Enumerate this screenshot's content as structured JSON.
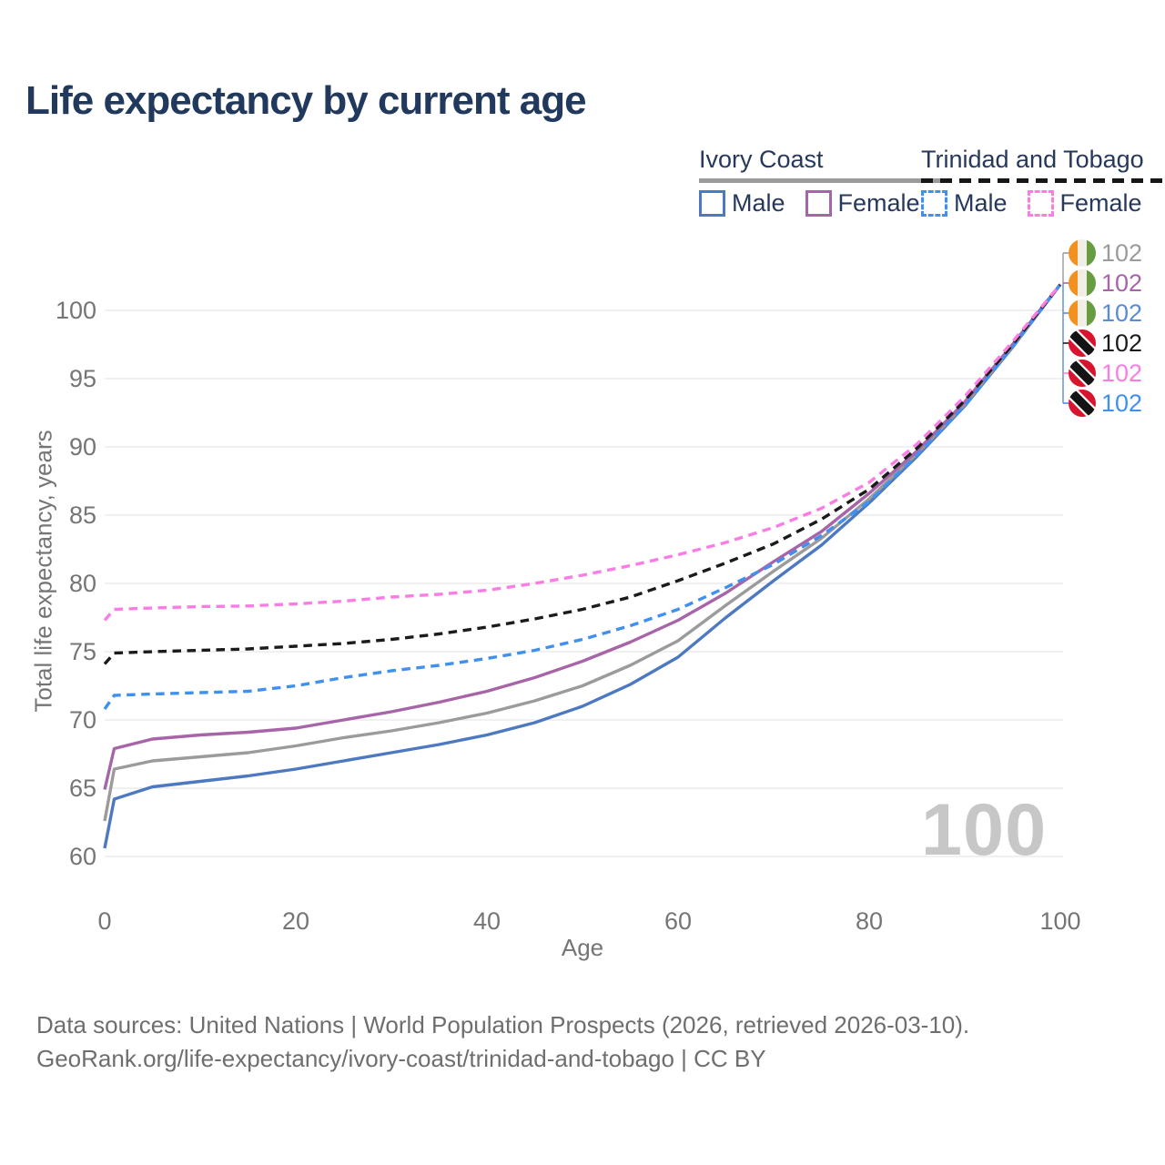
{
  "title": "Life expectancy by current age",
  "legend": {
    "groups": [
      {
        "id": "ivory-coast",
        "title": "Ivory Coast",
        "underline_style": "solid",
        "underline_color": "#9b9b9b",
        "items": [
          {
            "label": "Male",
            "color": "#4d79c0",
            "style": "solid"
          },
          {
            "label": "Female",
            "color": "#a765a8",
            "style": "solid"
          }
        ]
      },
      {
        "id": "trinidad-and-tobago",
        "title": "Trinidad and Tobago",
        "underline_style": "dashed",
        "underline_color": "#161616",
        "items": [
          {
            "label": "Male",
            "color": "#4090f0",
            "style": "dashed"
          },
          {
            "label": "Female",
            "color": "#fb7de4",
            "style": "dashed"
          }
        ]
      }
    ]
  },
  "chart_data": {
    "type": "line",
    "title": "Life expectancy by current age",
    "xlabel": "Age",
    "ylabel": "Total life expectancy, years",
    "xlim": [
      0,
      100
    ],
    "ylim": [
      60,
      102
    ],
    "x_ticks": [
      0,
      20,
      40,
      60,
      80,
      100
    ],
    "y_ticks": [
      60,
      65,
      70,
      75,
      80,
      85,
      90,
      95,
      100
    ],
    "grid": "horizontal",
    "legend_position": "top-right",
    "x": [
      0,
      1,
      5,
      10,
      15,
      20,
      25,
      30,
      35,
      40,
      45,
      50,
      55,
      60,
      65,
      70,
      75,
      80,
      85,
      90,
      95,
      100
    ],
    "series": [
      {
        "id": "ivory-coast-male",
        "name": "Ivory Coast Male",
        "color": "#4d79c0",
        "dash": "solid",
        "values": [
          60.6,
          64.2,
          65.1,
          65.5,
          65.9,
          66.4,
          67.0,
          67.6,
          68.2,
          68.9,
          69.8,
          71.0,
          72.6,
          74.6,
          77.5,
          80.2,
          82.8,
          85.9,
          89.3,
          93.0,
          97.3,
          101.9
        ]
      },
      {
        "id": "ivory-coast-all",
        "name": "Ivory Coast (both sexes)",
        "color": "#9b9b9b",
        "dash": "solid",
        "values": [
          62.6,
          66.4,
          67.0,
          67.3,
          67.6,
          68.1,
          68.7,
          69.2,
          69.8,
          70.5,
          71.4,
          72.5,
          74.0,
          75.8,
          78.4,
          80.9,
          83.3,
          86.2,
          89.5,
          93.1,
          97.4,
          101.9
        ]
      },
      {
        "id": "ivory-coast-female",
        "name": "Ivory Coast Female",
        "color": "#a765a8",
        "dash": "solid",
        "values": [
          64.9,
          67.9,
          68.6,
          68.9,
          69.1,
          69.4,
          70.0,
          70.6,
          71.3,
          72.1,
          73.1,
          74.3,
          75.7,
          77.3,
          79.3,
          81.6,
          83.8,
          86.6,
          89.7,
          93.3,
          97.5,
          101.9
        ]
      },
      {
        "id": "trinidad-and-tobago-male",
        "name": "Trinidad and Tobago Male",
        "color": "#4090f0",
        "dash": "dashed",
        "values": [
          70.8,
          71.8,
          71.9,
          72.0,
          72.1,
          72.5,
          73.1,
          73.6,
          74.0,
          74.5,
          75.1,
          75.9,
          76.9,
          78.1,
          79.7,
          81.4,
          83.5,
          86.0,
          89.4,
          93.0,
          97.3,
          101.9
        ]
      },
      {
        "id": "trinidad-and-tobago-all",
        "name": "Trinidad and Tobago (both sexes)",
        "color": "#1b1b1b",
        "dash": "dashed",
        "values": [
          74.1,
          74.9,
          75.0,
          75.1,
          75.2,
          75.4,
          75.6,
          75.9,
          76.3,
          76.8,
          77.4,
          78.1,
          79.0,
          80.2,
          81.5,
          82.9,
          84.7,
          86.9,
          89.9,
          93.4,
          97.5,
          101.9
        ]
      },
      {
        "id": "trinidad-and-tobago-female",
        "name": "Trinidad and Tobago Female",
        "color": "#fb7de4",
        "dash": "dashed",
        "values": [
          77.3,
          78.1,
          78.2,
          78.3,
          78.35,
          78.5,
          78.7,
          79.0,
          79.2,
          79.5,
          80.0,
          80.6,
          81.3,
          82.1,
          83.0,
          84.1,
          85.5,
          87.4,
          90.2,
          93.7,
          97.7,
          101.9
        ]
      }
    ]
  },
  "right_labels": [
    {
      "flag": "ivory-coast",
      "value": "102",
      "color": "#9b9b9b"
    },
    {
      "flag": "ivory-coast",
      "value": "102",
      "color": "#a765a8"
    },
    {
      "flag": "ivory-coast",
      "value": "102",
      "color": "#5b8bd0"
    },
    {
      "flag": "trinidad-and-tobago",
      "value": "102",
      "color": "#1b1b1b"
    },
    {
      "flag": "trinidad-and-tobago",
      "value": "102",
      "color": "#fb7de4"
    },
    {
      "flag": "trinidad-and-tobago",
      "value": "102",
      "color": "#4090f0"
    }
  ],
  "watermark": "100",
  "footer": {
    "line1": "Data sources: United Nations | World Population Prospects (2026, retrieved 2026-03-10).",
    "line2": "GeoRank.org/life-expectancy/ivory-coast/trinidad-and-tobago | CC BY"
  }
}
